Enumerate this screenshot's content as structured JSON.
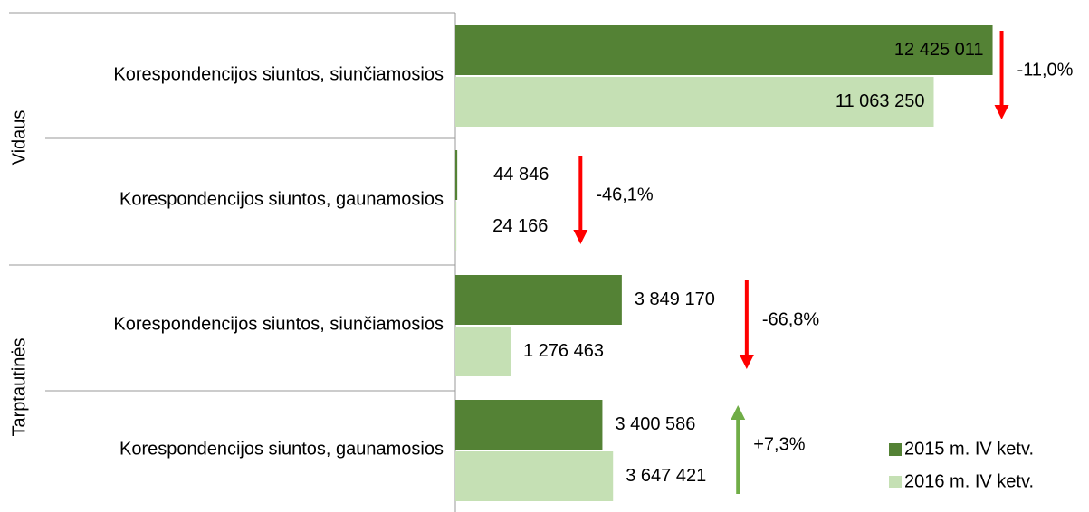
{
  "chart_data": {
    "type": "hbar",
    "groups": [
      "Vidaus",
      "Tarptautinės"
    ],
    "categories": [
      "Korespondencijos siuntos, siunčiamosios",
      "Korespondencijos siuntos, gaunamosios",
      "Korespondencijos siuntos, siunčiamosios",
      "Korespondencijos siuntos, gaunamosios"
    ],
    "series": [
      {
        "name": "2015 m. IV ketv.",
        "color": "#548235",
        "values": [
          12425011,
          44846,
          3849170,
          3400586
        ],
        "value_labels": [
          "12 425 011",
          "44 846",
          "3 849 170",
          "3 400 586"
        ]
      },
      {
        "name": "2016 m. IV ketv.",
        "color": "#c5e0b4",
        "values": [
          11063250,
          24166,
          1276463,
          3647421
        ],
        "value_labels": [
          "11 063 250",
          "24 166",
          "1 276 463",
          "3 647 421"
        ]
      }
    ],
    "changes": [
      -11.0,
      -46.1,
      -66.8,
      7.3
    ],
    "change_labels": [
      "-11,0%",
      "-46,1%",
      "-66,8%",
      "+7,3%"
    ],
    "up_color": "#70ad47",
    "down_color": "#ff0000",
    "xlim": [
      0,
      13000000
    ],
    "legend": "lower right"
  }
}
